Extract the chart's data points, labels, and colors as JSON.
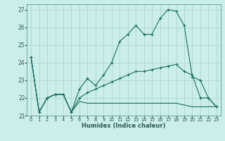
{
  "xlabel": "Humidex (Indice chaleur)",
  "bg_color": "#cceee8",
  "grid_color": "#aad8d0",
  "line_color": "#1a6e64",
  "xlim": [
    -0.5,
    23.5
  ],
  "ylim": [
    21.0,
    27.3
  ],
  "yticks": [
    21,
    22,
    23,
    24,
    25,
    26,
    27
  ],
  "xticks": [
    0,
    1,
    2,
    3,
    4,
    5,
    6,
    7,
    8,
    9,
    10,
    11,
    12,
    13,
    14,
    15,
    16,
    17,
    18,
    19,
    20,
    21,
    22,
    23
  ],
  "line1_x": [
    0,
    1,
    2,
    3,
    4,
    5,
    6,
    7,
    8,
    9,
    10,
    11,
    12,
    13,
    14,
    15,
    16,
    17,
    18,
    19,
    20,
    21,
    22,
    23
  ],
  "line1_y": [
    24.3,
    21.2,
    22.0,
    22.2,
    22.2,
    21.2,
    22.5,
    23.1,
    22.7,
    23.3,
    24.0,
    25.2,
    25.6,
    26.1,
    25.6,
    25.6,
    26.5,
    27.0,
    26.9,
    26.1,
    23.2,
    23.0,
    22.0,
    21.5
  ],
  "line2_x": [
    0,
    1,
    2,
    3,
    4,
    5,
    6,
    7,
    8,
    9,
    10,
    11,
    12,
    13,
    14,
    15,
    16,
    17,
    18,
    19,
    20,
    21,
    22,
    23
  ],
  "line2_y": [
    24.3,
    21.2,
    22.0,
    22.2,
    22.2,
    21.2,
    22.0,
    22.3,
    22.5,
    22.7,
    22.9,
    23.1,
    23.3,
    23.5,
    23.5,
    23.6,
    23.7,
    23.8,
    23.9,
    23.5,
    23.3,
    22.0,
    22.0,
    21.5
  ],
  "line3_x": [
    0,
    1,
    2,
    3,
    4,
    5,
    6,
    7,
    8,
    9,
    10,
    11,
    12,
    13,
    14,
    15,
    16,
    17,
    18,
    19,
    20,
    21,
    22,
    23
  ],
  "line3_y": [
    24.3,
    21.2,
    22.0,
    22.2,
    22.2,
    21.2,
    21.8,
    21.7,
    21.7,
    21.7,
    21.7,
    21.7,
    21.7,
    21.7,
    21.7,
    21.7,
    21.7,
    21.7,
    21.7,
    21.6,
    21.5,
    21.5,
    21.5,
    21.5
  ]
}
